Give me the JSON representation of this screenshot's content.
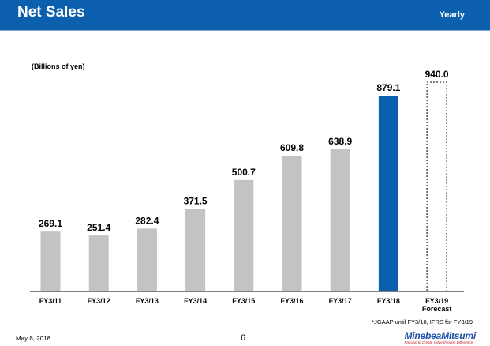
{
  "header": {
    "title": "Net Sales",
    "period": "Yearly"
  },
  "footnote": "*JGAAP until FY3/18, IFRS for FY3/19",
  "footer": {
    "date": "May 8, 2018",
    "page": "6"
  },
  "logo": {
    "name": "MinebeaMitsumi",
    "tagline": "Passion to Create Value through Difference"
  },
  "colors": {
    "header": "#0b5fad",
    "bar": "#c3c3c3",
    "highlight": "#0b5fad",
    "forecast_fill": "#ffffff",
    "forecast_border": "#000000"
  },
  "chart_data": {
    "type": "bar",
    "unit_label": "(Billions of yen)",
    "categories": [
      "FY3/11",
      "FY3/12",
      "FY3/13",
      "FY3/14",
      "FY3/15",
      "FY3/16",
      "FY3/17",
      "FY3/18",
      "FY3/19 Forecast"
    ],
    "values": [
      269.1,
      251.4,
      282.4,
      371.5,
      500.7,
      609.8,
      638.9,
      879.1,
      940.0
    ],
    "value_labels": [
      "269.1",
      "251.4",
      "282.4",
      "371.5",
      "500.7",
      "609.8",
      "638.9",
      "879.1",
      "940.0"
    ],
    "highlight_category": "FY3/18",
    "forecast_category": "FY3/19 Forecast",
    "ylim": [
      0,
      940
    ],
    "grid": false,
    "legend": "none"
  }
}
